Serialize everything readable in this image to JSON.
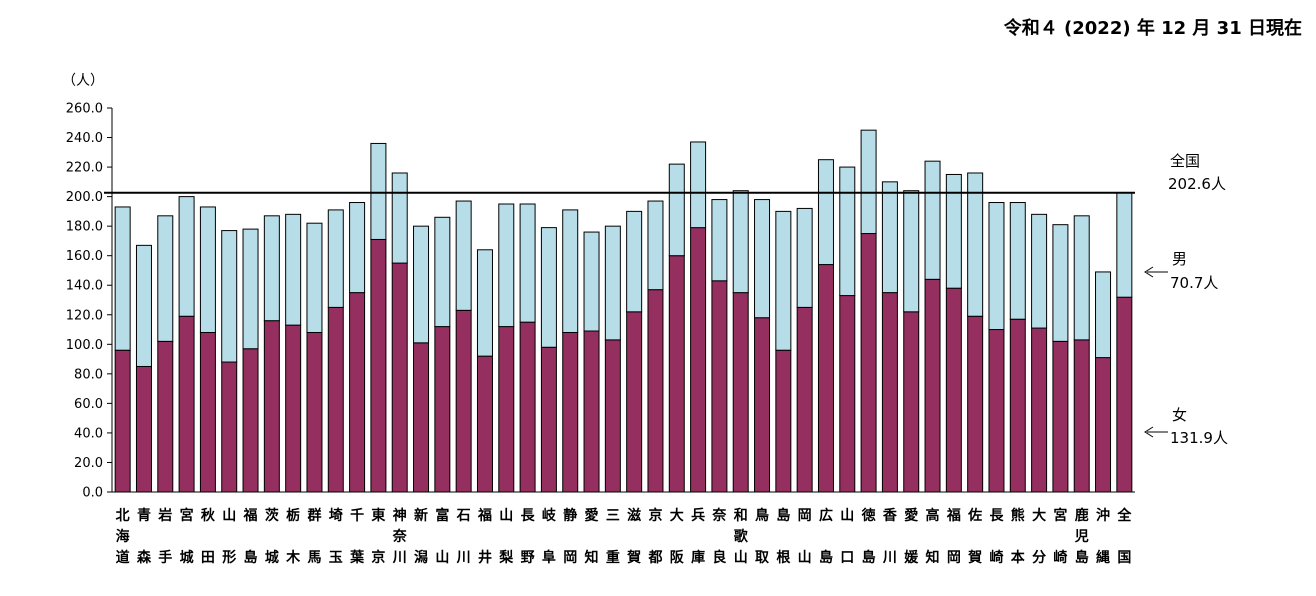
{
  "header": {
    "date": "令和４ (2022) 年 12 月 31 日現在"
  },
  "colors": {
    "female": "#952F5F",
    "male": "#B7DEE8",
    "axis": "#000000",
    "reference": "#000000"
  },
  "chart_data": {
    "type": "bar",
    "stacked": true,
    "title": "",
    "ylabel": "（人）",
    "ylim": [
      0,
      260
    ],
    "ytick_step": 20,
    "yticks": [
      "0.0",
      "20.0",
      "40.0",
      "60.0",
      "80.0",
      "100.0",
      "120.0",
      "140.0",
      "160.0",
      "180.0",
      "200.0",
      "220.0",
      "240.0",
      "260.0"
    ],
    "categories": [
      [
        "北",
        "海",
        "道"
      ],
      [
        "青",
        "",
        "森"
      ],
      [
        "岩",
        "",
        "手"
      ],
      [
        "宮",
        "",
        "城"
      ],
      [
        "秋",
        "",
        "田"
      ],
      [
        "山",
        "",
        "形"
      ],
      [
        "福",
        "",
        "島"
      ],
      [
        "茨",
        "",
        "城"
      ],
      [
        "栃",
        "",
        "木"
      ],
      [
        "群",
        "",
        "馬"
      ],
      [
        "埼",
        "",
        "玉"
      ],
      [
        "千",
        "",
        "葉"
      ],
      [
        "東",
        "",
        "京"
      ],
      [
        "神",
        "奈",
        "川"
      ],
      [
        "新",
        "",
        "潟"
      ],
      [
        "富",
        "",
        "山"
      ],
      [
        "石",
        "",
        "川"
      ],
      [
        "福",
        "",
        "井"
      ],
      [
        "山",
        "",
        "梨"
      ],
      [
        "長",
        "",
        "野"
      ],
      [
        "岐",
        "",
        "阜"
      ],
      [
        "静",
        "",
        "岡"
      ],
      [
        "愛",
        "",
        "知"
      ],
      [
        "三",
        "",
        "重"
      ],
      [
        "滋",
        "",
        "賀"
      ],
      [
        "京",
        "",
        "都"
      ],
      [
        "大",
        "",
        "阪"
      ],
      [
        "兵",
        "",
        "庫"
      ],
      [
        "奈",
        "",
        "良"
      ],
      [
        "和",
        "歌",
        "山"
      ],
      [
        "鳥",
        "",
        "取"
      ],
      [
        "島",
        "",
        "根"
      ],
      [
        "岡",
        "",
        "山"
      ],
      [
        "広",
        "",
        "島"
      ],
      [
        "山",
        "",
        "口"
      ],
      [
        "徳",
        "",
        "島"
      ],
      [
        "香",
        "",
        "川"
      ],
      [
        "愛",
        "",
        "媛"
      ],
      [
        "高",
        "",
        "知"
      ],
      [
        "福",
        "",
        "岡"
      ],
      [
        "佐",
        "",
        "賀"
      ],
      [
        "長",
        "",
        "崎"
      ],
      [
        "熊",
        "",
        "本"
      ],
      [
        "大",
        "",
        "分"
      ],
      [
        "宮",
        "",
        "崎"
      ],
      [
        "鹿",
        "児",
        "島"
      ],
      [
        "沖",
        "",
        "縄"
      ],
      [
        "全",
        "",
        "国"
      ]
    ],
    "series": [
      {
        "name": "女",
        "values": [
          96,
          85,
          102,
          119,
          108,
          88,
          97,
          116,
          113,
          108,
          125,
          135,
          171,
          155,
          101,
          112,
          123,
          92,
          112,
          115,
          98,
          108,
          109,
          103,
          122,
          137,
          160,
          179,
          143,
          135,
          118,
          96,
          125,
          154,
          133,
          175,
          135,
          122,
          144,
          138,
          119,
          110,
          117,
          111,
          102,
          103,
          91,
          131.9
        ]
      },
      {
        "name": "男",
        "values": [
          97,
          82,
          85,
          81,
          85,
          89,
          81,
          71,
          75,
          74,
          66,
          61,
          65,
          61,
          79,
          74,
          74,
          72,
          83,
          80,
          81,
          83,
          67,
          77,
          68,
          60,
          62,
          58,
          55,
          69,
          80,
          94,
          67,
          71,
          87,
          70,
          75,
          82,
          80,
          77,
          97,
          86,
          79,
          77,
          79,
          84,
          58,
          70.7
        ]
      }
    ],
    "reference_line": {
      "value": 202.6,
      "label_name": "全国",
      "label_value": "202.6人"
    },
    "annotations": [
      {
        "id": "male",
        "name": "男",
        "value": "70.7人"
      },
      {
        "id": "female",
        "name": "女",
        "value": "131.9人"
      }
    ]
  }
}
